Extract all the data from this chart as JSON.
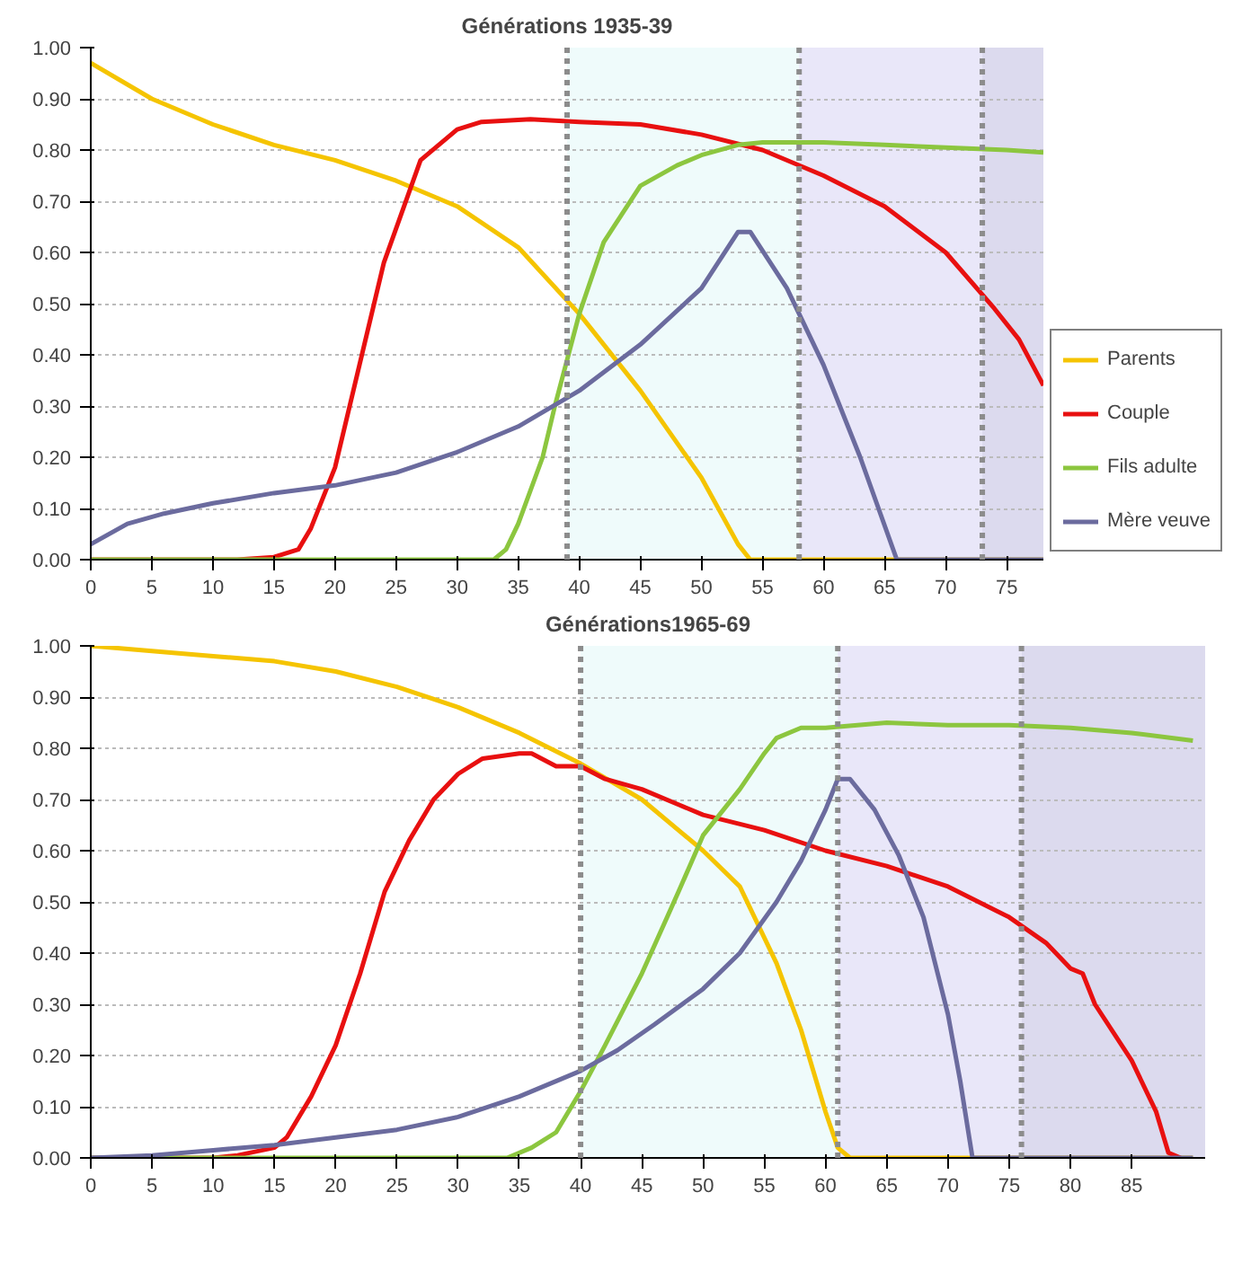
{
  "chart_data": [
    {
      "type": "line",
      "title": "Générations 1935-39",
      "xlim": [
        0,
        78
      ],
      "xticks": [
        0,
        5,
        10,
        15,
        20,
        25,
        30,
        35,
        40,
        45,
        50,
        55,
        60,
        65,
        70,
        75
      ],
      "ylim": [
        0,
        1
      ],
      "yticks": [
        {
          "value": 0,
          "label": "0.00"
        },
        {
          "value": 0.1,
          "label": "0.10"
        },
        {
          "value": 0.2,
          "label": "0.20"
        },
        {
          "value": 0.3,
          "label": "0.30"
        },
        {
          "value": 0.4,
          "label": "0.40"
        },
        {
          "value": 0.5,
          "label": "0.50"
        },
        {
          "value": 0.6,
          "label": "0.60"
        },
        {
          "value": 0.7,
          "label": "0.70"
        },
        {
          "value": 0.8,
          "label": "0.80"
        },
        {
          "value": 0.9,
          "label": "0.90"
        },
        {
          "value": 1,
          "label": "1.00"
        }
      ],
      "grid": "y",
      "legend": "right",
      "bands": [
        {
          "axis": "x",
          "from": 39,
          "to": 58,
          "color": "#effbfb"
        },
        {
          "axis": "x",
          "from": 58,
          "to": 73,
          "color": "#e9e7f9"
        },
        {
          "axis": "x",
          "from": 73,
          "to": 78,
          "color": "#dcdaee"
        }
      ],
      "ref_lines": [
        {
          "axis": "x",
          "value": 39,
          "color": "#8c8c8c",
          "line_style": "dotted"
        },
        {
          "axis": "x",
          "value": 58,
          "color": "#8c8c8c",
          "line_style": "dotted"
        },
        {
          "axis": "x",
          "value": 73,
          "color": "#8c8c8c",
          "line_style": "dotted"
        }
      ],
      "series": [
        {
          "name": "Parents",
          "color": "#f5c400",
          "x": [
            0,
            5,
            10,
            15,
            20,
            25,
            30,
            35,
            40,
            45,
            50,
            53,
            54,
            78
          ],
          "values": [
            0.97,
            0.9,
            0.85,
            0.81,
            0.78,
            0.74,
            0.69,
            0.61,
            0.48,
            0.33,
            0.16,
            0.03,
            0,
            0
          ]
        },
        {
          "name": "Couple",
          "color": "#e81010",
          "x": [
            0,
            12,
            15,
            17,
            18,
            20,
            22,
            24,
            27,
            30,
            32,
            36,
            40,
            45,
            50,
            55,
            60,
            65,
            70,
            74,
            76,
            78
          ],
          "values": [
            0,
            0,
            0.005,
            0.02,
            0.06,
            0.18,
            0.38,
            0.58,
            0.78,
            0.84,
            0.855,
            0.86,
            0.855,
            0.85,
            0.83,
            0.8,
            0.75,
            0.69,
            0.6,
            0.49,
            0.43,
            0.34
          ]
        },
        {
          "name": "Fils adulte",
          "color": "#8cc63f",
          "x": [
            0,
            33,
            34,
            35,
            37,
            38,
            40,
            42,
            45,
            48,
            50,
            53,
            55,
            60,
            65,
            70,
            75,
            78
          ],
          "values": [
            0,
            0,
            0.02,
            0.07,
            0.2,
            0.3,
            0.48,
            0.62,
            0.73,
            0.77,
            0.79,
            0.81,
            0.815,
            0.815,
            0.81,
            0.805,
            0.8,
            0.795
          ]
        },
        {
          "name": "Mère veuve",
          "color": "#6b6b9e",
          "x": [
            0,
            3,
            6,
            10,
            15,
            20,
            25,
            30,
            35,
            40,
            45,
            50,
            53,
            54,
            57,
            60,
            63,
            66,
            78
          ],
          "values": [
            0.03,
            0.07,
            0.09,
            0.11,
            0.13,
            0.145,
            0.17,
            0.21,
            0.26,
            0.33,
            0.42,
            0.53,
            0.64,
            0.64,
            0.53,
            0.38,
            0.2,
            0,
            0
          ]
        }
      ]
    },
    {
      "type": "line",
      "title": "Générations1965-69",
      "xlim": [
        0,
        91
      ],
      "xticks": [
        0,
        5,
        10,
        15,
        20,
        25,
        30,
        35,
        40,
        45,
        50,
        55,
        60,
        65,
        70,
        75,
        80,
        85
      ],
      "ylim": [
        0,
        1
      ],
      "yticks": [
        {
          "value": 0,
          "label": "0.00"
        },
        {
          "value": 0.1,
          "label": "0.10"
        },
        {
          "value": 0.2,
          "label": "0.20"
        },
        {
          "value": 0.3,
          "label": "0.30"
        },
        {
          "value": 0.4,
          "label": "0.40"
        },
        {
          "value": 0.5,
          "label": "0.50"
        },
        {
          "value": 0.6,
          "label": "0.60"
        },
        {
          "value": 0.7,
          "label": "0.70"
        },
        {
          "value": 0.8,
          "label": "0.80"
        },
        {
          "value": 0.9,
          "label": "0.90"
        },
        {
          "value": 1,
          "label": "1.00"
        }
      ],
      "grid": "y",
      "bands": [
        {
          "axis": "x",
          "from": 40,
          "to": 61,
          "color": "#effbfb"
        },
        {
          "axis": "x",
          "from": 61,
          "to": 76,
          "color": "#e9e7f9"
        },
        {
          "axis": "x",
          "from": 76,
          "to": 91,
          "color": "#dcdaee"
        }
      ],
      "ref_lines": [
        {
          "axis": "x",
          "value": 40,
          "color": "#8c8c8c",
          "line_style": "dotted"
        },
        {
          "axis": "x",
          "value": 61,
          "color": "#8c8c8c",
          "line_style": "dotted"
        },
        {
          "axis": "x",
          "value": 76,
          "color": "#8c8c8c",
          "line_style": "dotted"
        }
      ],
      "series": [
        {
          "color": "#f5c400",
          "x": [
            0,
            5,
            10,
            15,
            20,
            25,
            30,
            35,
            40,
            45,
            50,
            53,
            56,
            58,
            60,
            61,
            62,
            90
          ],
          "values": [
            1,
            0.99,
            0.98,
            0.97,
            0.95,
            0.92,
            0.88,
            0.83,
            0.77,
            0.7,
            0.6,
            0.53,
            0.38,
            0.25,
            0.09,
            0.02,
            0,
            0
          ]
        },
        {
          "color": "#e81010",
          "x": [
            0,
            10,
            12,
            15,
            16,
            18,
            20,
            22,
            24,
            26,
            28,
            30,
            32,
            35,
            36,
            38,
            40,
            42,
            45,
            48,
            50,
            55,
            60,
            65,
            70,
            75,
            78,
            80,
            81,
            82,
            85,
            87,
            88,
            89
          ],
          "values": [
            0,
            0,
            0.005,
            0.02,
            0.04,
            0.12,
            0.22,
            0.36,
            0.52,
            0.62,
            0.7,
            0.75,
            0.78,
            0.79,
            0.79,
            0.765,
            0.765,
            0.74,
            0.72,
            0.69,
            0.67,
            0.64,
            0.6,
            0.57,
            0.53,
            0.47,
            0.42,
            0.37,
            0.36,
            0.3,
            0.19,
            0.09,
            0.01,
            0
          ]
        },
        {
          "color": "#8cc63f",
          "x": [
            0,
            34,
            36,
            38,
            40,
            42,
            45,
            48,
            50,
            53,
            55,
            56,
            58,
            60,
            65,
            70,
            75,
            80,
            85,
            90
          ],
          "values": [
            0,
            0,
            0.02,
            0.05,
            0.13,
            0.22,
            0.36,
            0.52,
            0.63,
            0.72,
            0.79,
            0.82,
            0.84,
            0.84,
            0.85,
            0.845,
            0.845,
            0.84,
            0.83,
            0.815
          ]
        },
        {
          "color": "#6b6b9e",
          "x": [
            0,
            5,
            10,
            15,
            20,
            25,
            30,
            35,
            40,
            43,
            46,
            50,
            53,
            56,
            58,
            60,
            61,
            62,
            64,
            66,
            68,
            70,
            71,
            72,
            90
          ],
          "values": [
            0,
            0.005,
            0.015,
            0.025,
            0.04,
            0.055,
            0.08,
            0.12,
            0.17,
            0.21,
            0.26,
            0.33,
            0.4,
            0.5,
            0.58,
            0.68,
            0.74,
            0.74,
            0.68,
            0.59,
            0.47,
            0.28,
            0.15,
            0,
            0
          ]
        }
      ]
    }
  ]
}
